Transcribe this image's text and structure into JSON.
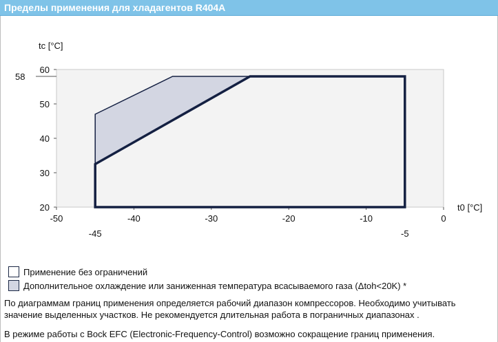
{
  "header": {
    "title": "Пределы применения для хладагентов R404A"
  },
  "chart_data": {
    "type": "area",
    "xlabel": "t0 [°C]",
    "ylabel": "tc [°C]",
    "xlim": [
      -50,
      0
    ],
    "ylim": [
      20,
      60
    ],
    "x_ticks": [
      "-50",
      "-40",
      "-30",
      "-20",
      "-10",
      "0"
    ],
    "y_ticks": [
      "20",
      "30",
      "40",
      "50",
      "60"
    ],
    "annotations": {
      "x_marks": [
        "-45",
        "-5"
      ],
      "y_marks": [
        "58"
      ]
    },
    "background_color": "#f3f3f3",
    "series": [
      {
        "fill": "#d3d6e2",
        "points": [
          [
            -45,
            47
          ],
          [
            -35,
            58
          ],
          [
            -25,
            58
          ],
          [
            -45,
            32.5
          ]
        ]
      },
      {
        "fill": "none",
        "stroke": "#142042",
        "points": [
          [
            -45,
            20
          ],
          [
            -45,
            32.5
          ],
          [
            -25,
            58
          ],
          [
            -5,
            58
          ],
          [
            -5,
            20
          ]
        ]
      }
    ]
  },
  "legend": [
    {
      "label": "Применение без ограничений",
      "color": "#ffffff"
    },
    {
      "label": "Дополнительное охлаждение или заниженная температура всасываемого газа (Δtoh<20K) *",
      "color": "#d3d6e2"
    }
  ],
  "notes": [
    "По диаграммам границ применения определяется рабочий диапазон компрессоров. Необходимо учитывать значение выделенных участков. Не рекомендуется длительная работа в пограничных диапазонах .",
    "В режиме работы с Bock EFC (Electronic-Frequency-Control) возможно сокращение границ применения."
  ]
}
